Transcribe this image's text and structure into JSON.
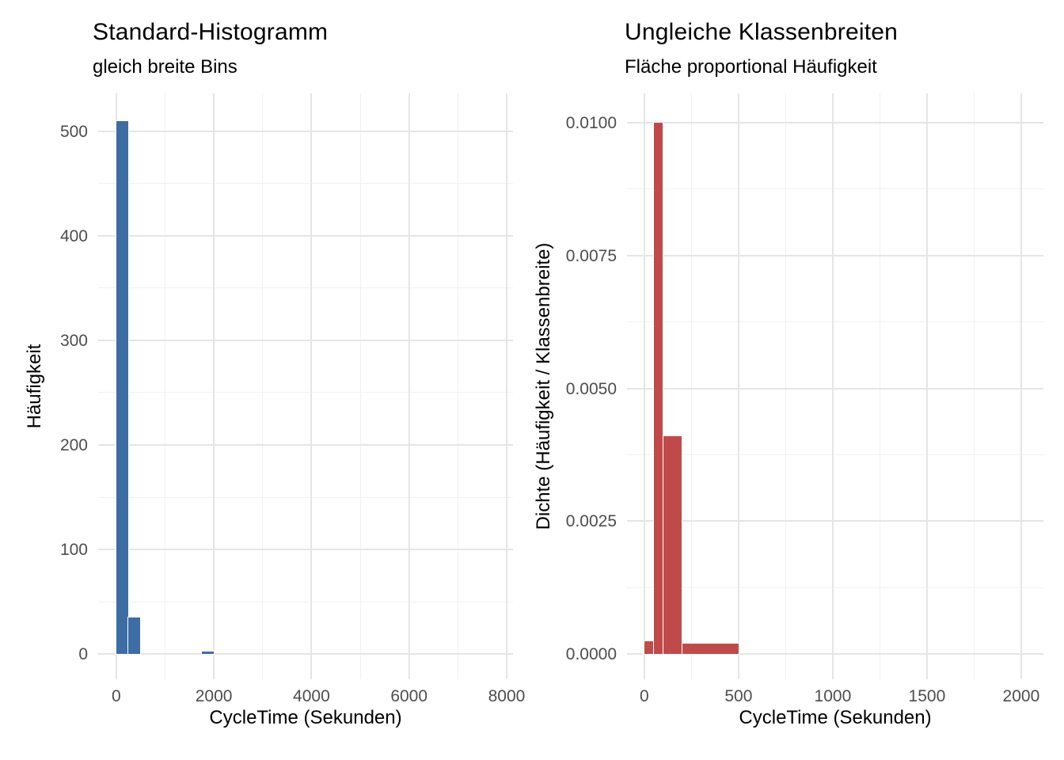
{
  "figure": {
    "background_color": "#ffffff",
    "tick_label_color": "#4d4d4d",
    "major_grid_color": "#e5e5e5",
    "minor_grid_color": "#f1f1f1"
  },
  "chart_data": [
    {
      "type": "bar",
      "subtype": "histogram",
      "title": "Standard-Histogramm",
      "subtitle": "gleich breite Bins",
      "xlabel": "CycleTime (Sekunden)",
      "ylabel": "Häufigkeit",
      "bar_color": "#3c6da4",
      "grid": true,
      "legend": "none",
      "x_axis": {
        "min": -370,
        "max": 8130,
        "major_ticks": [
          0,
          2000,
          4000,
          6000,
          8000
        ],
        "tick_labels": [
          "0",
          "2000",
          "4000",
          "6000",
          "8000"
        ],
        "minor_ticks": [
          1000,
          3000,
          5000,
          7000
        ]
      },
      "y_axis": {
        "min": -24,
        "max": 536,
        "major_ticks": [
          0,
          100,
          200,
          300,
          400,
          500
        ],
        "tick_labels": [
          "0",
          "100",
          "200",
          "300",
          "400",
          "500"
        ],
        "minor_ticks": [
          50,
          150,
          250,
          350,
          450
        ]
      },
      "bins": [
        {
          "from": 0,
          "to": 250,
          "value": 510
        },
        {
          "from": 250,
          "to": 500,
          "value": 35
        },
        {
          "from": 1750,
          "to": 2000,
          "value": 3
        }
      ]
    },
    {
      "type": "bar",
      "subtype": "histogram-density",
      "title": "Ungleiche Klassenbreiten",
      "subtitle": "Fläche proportional Häufigkeit",
      "xlabel": "CycleTime (Sekunden)",
      "ylabel": "Dichte (Häufigkeit / Klassenbreite)",
      "bar_color": "#c04a4a",
      "grid": true,
      "legend": "none",
      "x_axis": {
        "min": -92,
        "max": 2118,
        "major_ticks": [
          0,
          500,
          1000,
          1500,
          2000
        ],
        "tick_labels": [
          "0",
          "500",
          "1000",
          "1500",
          "2000"
        ],
        "minor_ticks": [
          250,
          750,
          1250,
          1750
        ]
      },
      "y_axis": {
        "min": -0.00047,
        "max": 0.010545,
        "major_ticks": [
          0.0,
          0.0025,
          0.005,
          0.0075,
          0.01
        ],
        "tick_labels": [
          "0.0000",
          "0.0025",
          "0.0050",
          "0.0075",
          "0.0100"
        ],
        "minor_ticks": [
          0.00125,
          0.00375,
          0.00625,
          0.00875
        ]
      },
      "bins": [
        {
          "from": 0,
          "to": 50,
          "value": 0.00025
        },
        {
          "from": 50,
          "to": 100,
          "value": 0.01
        },
        {
          "from": 100,
          "to": 200,
          "value": 0.0041
        },
        {
          "from": 200,
          "to": 500,
          "value": 0.0002
        }
      ]
    }
  ]
}
